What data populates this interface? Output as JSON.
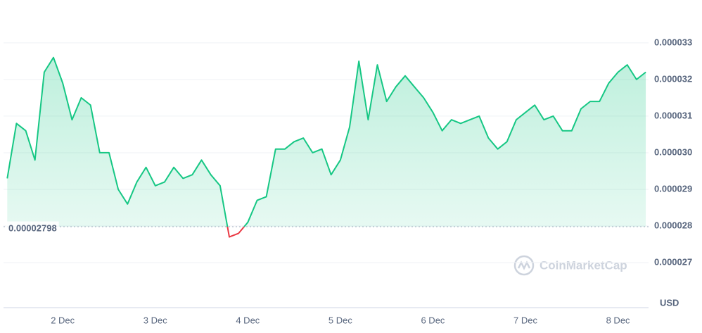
{
  "chart_data": {
    "type": "line",
    "x": [
      1.4,
      1.5,
      1.6,
      1.7,
      1.8,
      1.9,
      2.0,
      2.1,
      2.2,
      2.3,
      2.4,
      2.5,
      2.6,
      2.7,
      2.8,
      2.9,
      3.0,
      3.1,
      3.2,
      3.3,
      3.4,
      3.5,
      3.6,
      3.7,
      3.8,
      3.9,
      4.0,
      4.1,
      4.2,
      4.3,
      4.4,
      4.5,
      4.6,
      4.7,
      4.8,
      4.9,
      5.0,
      5.1,
      5.2,
      5.3,
      5.4,
      5.5,
      5.6,
      5.7,
      5.8,
      5.9,
      6.0,
      6.1,
      6.2,
      6.3,
      6.4,
      6.5,
      6.6,
      6.7,
      6.8,
      6.9,
      7.0,
      7.1,
      7.2,
      7.3,
      7.4,
      7.5,
      7.6,
      7.7,
      7.8,
      7.9,
      8.0,
      8.1,
      8.2,
      8.3
    ],
    "series": [
      {
        "color": "#16c784",
        "color_below": "#ea3943",
        "values": [
          2.93e-05,
          3.08e-05,
          3.06e-05,
          2.98e-05,
          3.22e-05,
          3.26e-05,
          3.19e-05,
          3.09e-05,
          3.15e-05,
          3.13e-05,
          3e-05,
          3e-05,
          2.9e-05,
          2.86e-05,
          2.92e-05,
          2.96e-05,
          2.91e-05,
          2.92e-05,
          2.96e-05,
          2.93e-05,
          2.94e-05,
          2.98e-05,
          2.94e-05,
          2.91e-05,
          2.77e-05,
          2.78e-05,
          2.81e-05,
          2.87e-05,
          2.88e-05,
          3.01e-05,
          3.01e-05,
          3.03e-05,
          3.04e-05,
          3e-05,
          3.01e-05,
          2.94e-05,
          2.98e-05,
          3.07e-05,
          3.25e-05,
          3.09e-05,
          3.24e-05,
          3.14e-05,
          3.18e-05,
          3.21e-05,
          3.18e-05,
          3.15e-05,
          3.11e-05,
          3.06e-05,
          3.09e-05,
          3.08e-05,
          3.09e-05,
          3.1e-05,
          3.04e-05,
          3.01e-05,
          3.03e-05,
          3.09e-05,
          3.11e-05,
          3.13e-05,
          3.09e-05,
          3.1e-05,
          3.06e-05,
          3.06e-05,
          3.12e-05,
          3.14e-05,
          3.14e-05,
          3.19e-05,
          3.22e-05,
          3.24e-05,
          3.2e-05,
          3.22e-05
        ]
      }
    ],
    "baseline": 2.798e-05,
    "xlim": [
      1.36,
      8.33
    ],
    "xticks": [
      {
        "value": 2,
        "label": "2 Dec"
      },
      {
        "value": 3,
        "label": "3 Dec"
      },
      {
        "value": 4,
        "label": "4 Dec"
      },
      {
        "value": 5,
        "label": "5 Dec"
      },
      {
        "value": 6,
        "label": "6 Dec"
      },
      {
        "value": 7,
        "label": "7 Dec"
      },
      {
        "value": 8,
        "label": "8 Dec"
      }
    ],
    "ylim": [
      2.577e-05,
      3.417e-05
    ],
    "yticks": [
      2.7e-05,
      2.8e-05,
      2.9e-05,
      {
        "value": 3e-05,
        "label": "0.000030"
      },
      3.1e-05,
      3.2e-05,
      3.3e-05
    ],
    "y_unit_label": "USD",
    "watermark": "CoinMarketCap",
    "grid": true
  }
}
